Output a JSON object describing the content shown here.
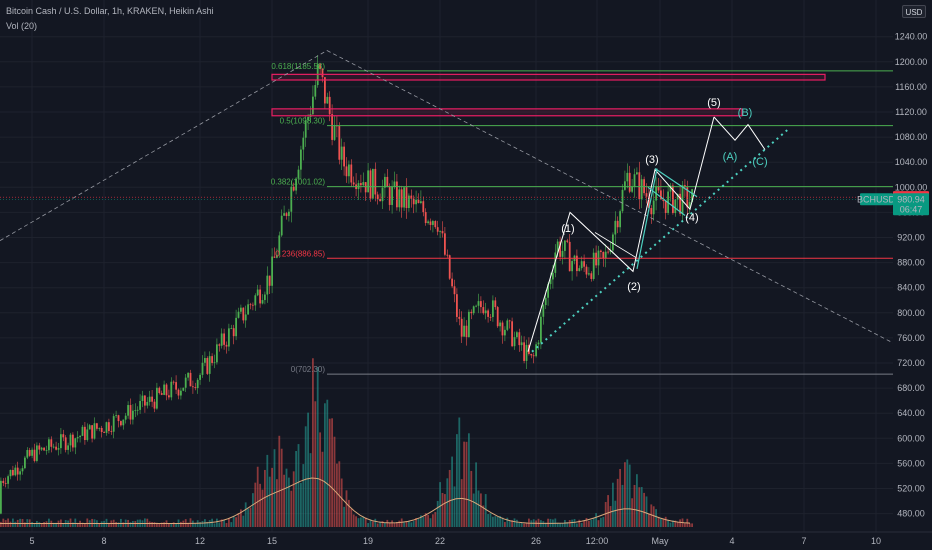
{
  "header": {
    "title_line": "Bitcoin Cash / U.S. Dollar, 1h, KRAKEN, Heikin Ashi",
    "volume_line": "Vol (20)"
  },
  "currency_label": "USD",
  "colors": {
    "background": "#131722",
    "up": "#26a69a",
    "down": "#ef5350",
    "up_dark": "#4caf50",
    "fib": "#4caf50",
    "fib_023": "#f23645",
    "zone": "#e91e63",
    "wave_white": "#ffffff",
    "wave_teal": "#4dd0c0",
    "price_tag": "#f23645",
    "symbol_tag": "#089981",
    "axis_text": "#b2b5be"
  },
  "chart_data": {
    "type": "candlestick",
    "y_axis": {
      "ticks": [
        "1240.00",
        "1200.00",
        "1160.00",
        "1120.00",
        "1080.00",
        "1040.00",
        "1000.00",
        "960.00",
        "920.00",
        "880.00",
        "840.00",
        "800.00",
        "760.00",
        "720.00",
        "680.00",
        "640.00",
        "600.00",
        "560.00",
        "520.00",
        "480.00"
      ],
      "tick_values": [
        1240,
        1200,
        1160,
        1120,
        1080,
        1040,
        1000,
        960,
        920,
        880,
        840,
        800,
        760,
        720,
        680,
        640,
        600,
        560,
        520,
        480
      ],
      "range": [
        468,
        1258
      ]
    },
    "x_axis": {
      "ticks": [
        "5",
        "8",
        "12",
        "15",
        "19",
        "22",
        "26",
        "12:00",
        "May",
        "4",
        "7",
        "10"
      ]
    },
    "fib_levels": [
      {
        "label": "0.618(1185.58)",
        "value": 1185.58
      },
      {
        "label": "0.5(1098.30)",
        "value": 1098.3
      },
      {
        "label": "0.382(1001.02)",
        "value": 1001.02
      },
      {
        "label": "0.236(886.85)",
        "value": 886.85
      },
      {
        "label": "0(702.30)",
        "value": 702.3
      }
    ],
    "resistance_zones": [
      {
        "low": 1171,
        "high": 1180
      },
      {
        "low": 1114,
        "high": 1125
      }
    ],
    "key_points": [
      {
        "x": "Apr 2",
        "y": 480
      },
      {
        "x": "Apr 5",
        "y": 575
      },
      {
        "x": "Apr 8",
        "y": 620
      },
      {
        "x": "Apr 12",
        "y": 700
      },
      {
        "x": "Apr 15",
        "y": 860
      },
      {
        "x": "Apr 17",
        "y": 1185
      },
      {
        "x": "Apr 18",
        "y": 1040
      },
      {
        "x": "Apr 19",
        "y": 1010
      },
      {
        "x": "Apr 22",
        "y": 950
      },
      {
        "x": "Apr 23",
        "y": 765
      },
      {
        "x": "Apr 24",
        "y": 820
      },
      {
        "x": "Apr 25",
        "y": 770
      },
      {
        "x": "Apr 26",
        "y": 720
      },
      {
        "x": "Apr 27",
        "y": 910
      },
      {
        "x": "Apr 28",
        "y": 870
      },
      {
        "x": "Apr 29",
        "y": 880
      },
      {
        "x": "Apr 30",
        "y": 1020
      },
      {
        "x": "May 1",
        "y": 980
      }
    ],
    "volume_peaks": [
      {
        "x": "Apr 15",
        "v": 0.55
      },
      {
        "x": "Apr 17",
        "v": 1.0
      },
      {
        "x": "Apr 23",
        "v": 0.6
      },
      {
        "x": "Apr 30",
        "v": 0.35
      }
    ],
    "waves": {
      "impulse_labels": [
        "(1)",
        "(2)",
        "(3)",
        "(4)",
        "(5)"
      ],
      "corrective_labels": [
        "(A)",
        "(B)",
        "(C)"
      ],
      "impulse_points": [
        {
          "label": "(1)",
          "y": 955
        },
        {
          "label": "(2)",
          "y": 865
        },
        {
          "label": "(3)",
          "y": 1030
        },
        {
          "label": "(4)",
          "y": 960
        },
        {
          "label": "(5)",
          "y": 1112
        }
      ]
    },
    "current_price": {
      "label": "984.32",
      "value": 984.32
    },
    "symbol_tag": {
      "symbol": "BCHUSD",
      "price": "980.94",
      "countdown": "06:47",
      "value": 980.94
    }
  }
}
